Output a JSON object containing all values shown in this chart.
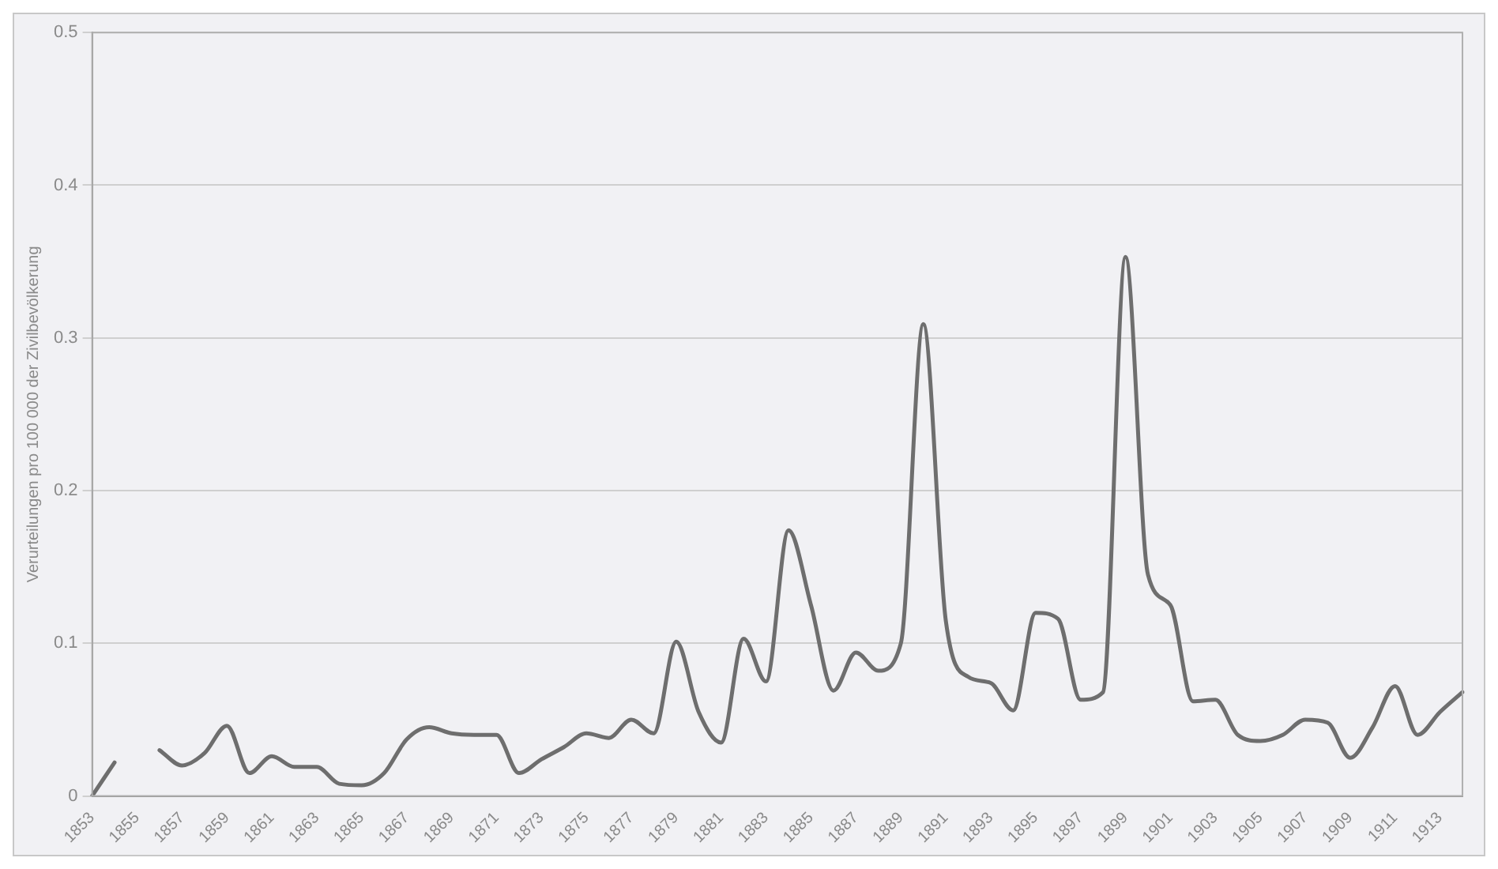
{
  "chart_data": {
    "type": "line",
    "ylabel": "Verurteilungen pro 100 000 der Zivilbevölkerung",
    "categories": [
      "1853",
      null,
      "1855",
      null,
      "1857",
      null,
      "1859",
      null,
      "1861",
      null,
      "1863",
      null,
      "1865",
      null,
      "1867",
      null,
      "1869",
      null,
      "1871",
      null,
      "1873",
      null,
      "1875",
      null,
      "1877",
      null,
      "1879",
      null,
      "1881",
      null,
      "1883",
      null,
      "1885",
      null,
      "1887",
      null,
      "1889",
      null,
      "1891",
      null,
      "1893",
      null,
      "1895",
      null,
      "1897",
      null,
      "1899",
      null,
      "1901",
      null,
      "1903",
      null,
      "1905",
      null,
      "1907",
      null,
      "1909",
      null,
      "1911",
      null,
      "1913",
      null
    ],
    "series": [
      {
        "color": "#6e6e6e",
        "values": [
          0,
          0.022,
          null,
          0.03,
          0.02,
          0.028,
          0.046,
          0.015,
          0.026,
          0.019,
          0.019,
          0.008,
          0.007,
          0.015,
          0.037,
          0.045,
          0.041,
          0.04,
          0.04,
          0.015,
          0.024,
          0.032,
          0.041,
          0.038,
          0.05,
          0.041,
          0.101,
          0.055,
          0.035,
          0.103,
          0.075,
          0.174,
          0.125,
          0.069,
          0.094,
          0.082,
          0.1,
          0.309,
          0.115,
          0.078,
          0.074,
          0.056,
          0.12,
          0.116,
          0.063,
          0.068,
          0.353,
          0.145,
          0.125,
          0.062,
          0.063,
          0.04,
          0.036,
          0.04,
          0.05,
          0.048,
          0.025,
          0.045,
          0.072,
          0.04,
          0.055,
          0.068
        ]
      }
    ],
    "ylim": [
      0,
      0.5
    ],
    "yticks": [
      0,
      0.1,
      0.2,
      0.3,
      0.4,
      0.5
    ],
    "grid": "y",
    "legend": false,
    "marker": "none",
    "line_style": "solid"
  }
}
